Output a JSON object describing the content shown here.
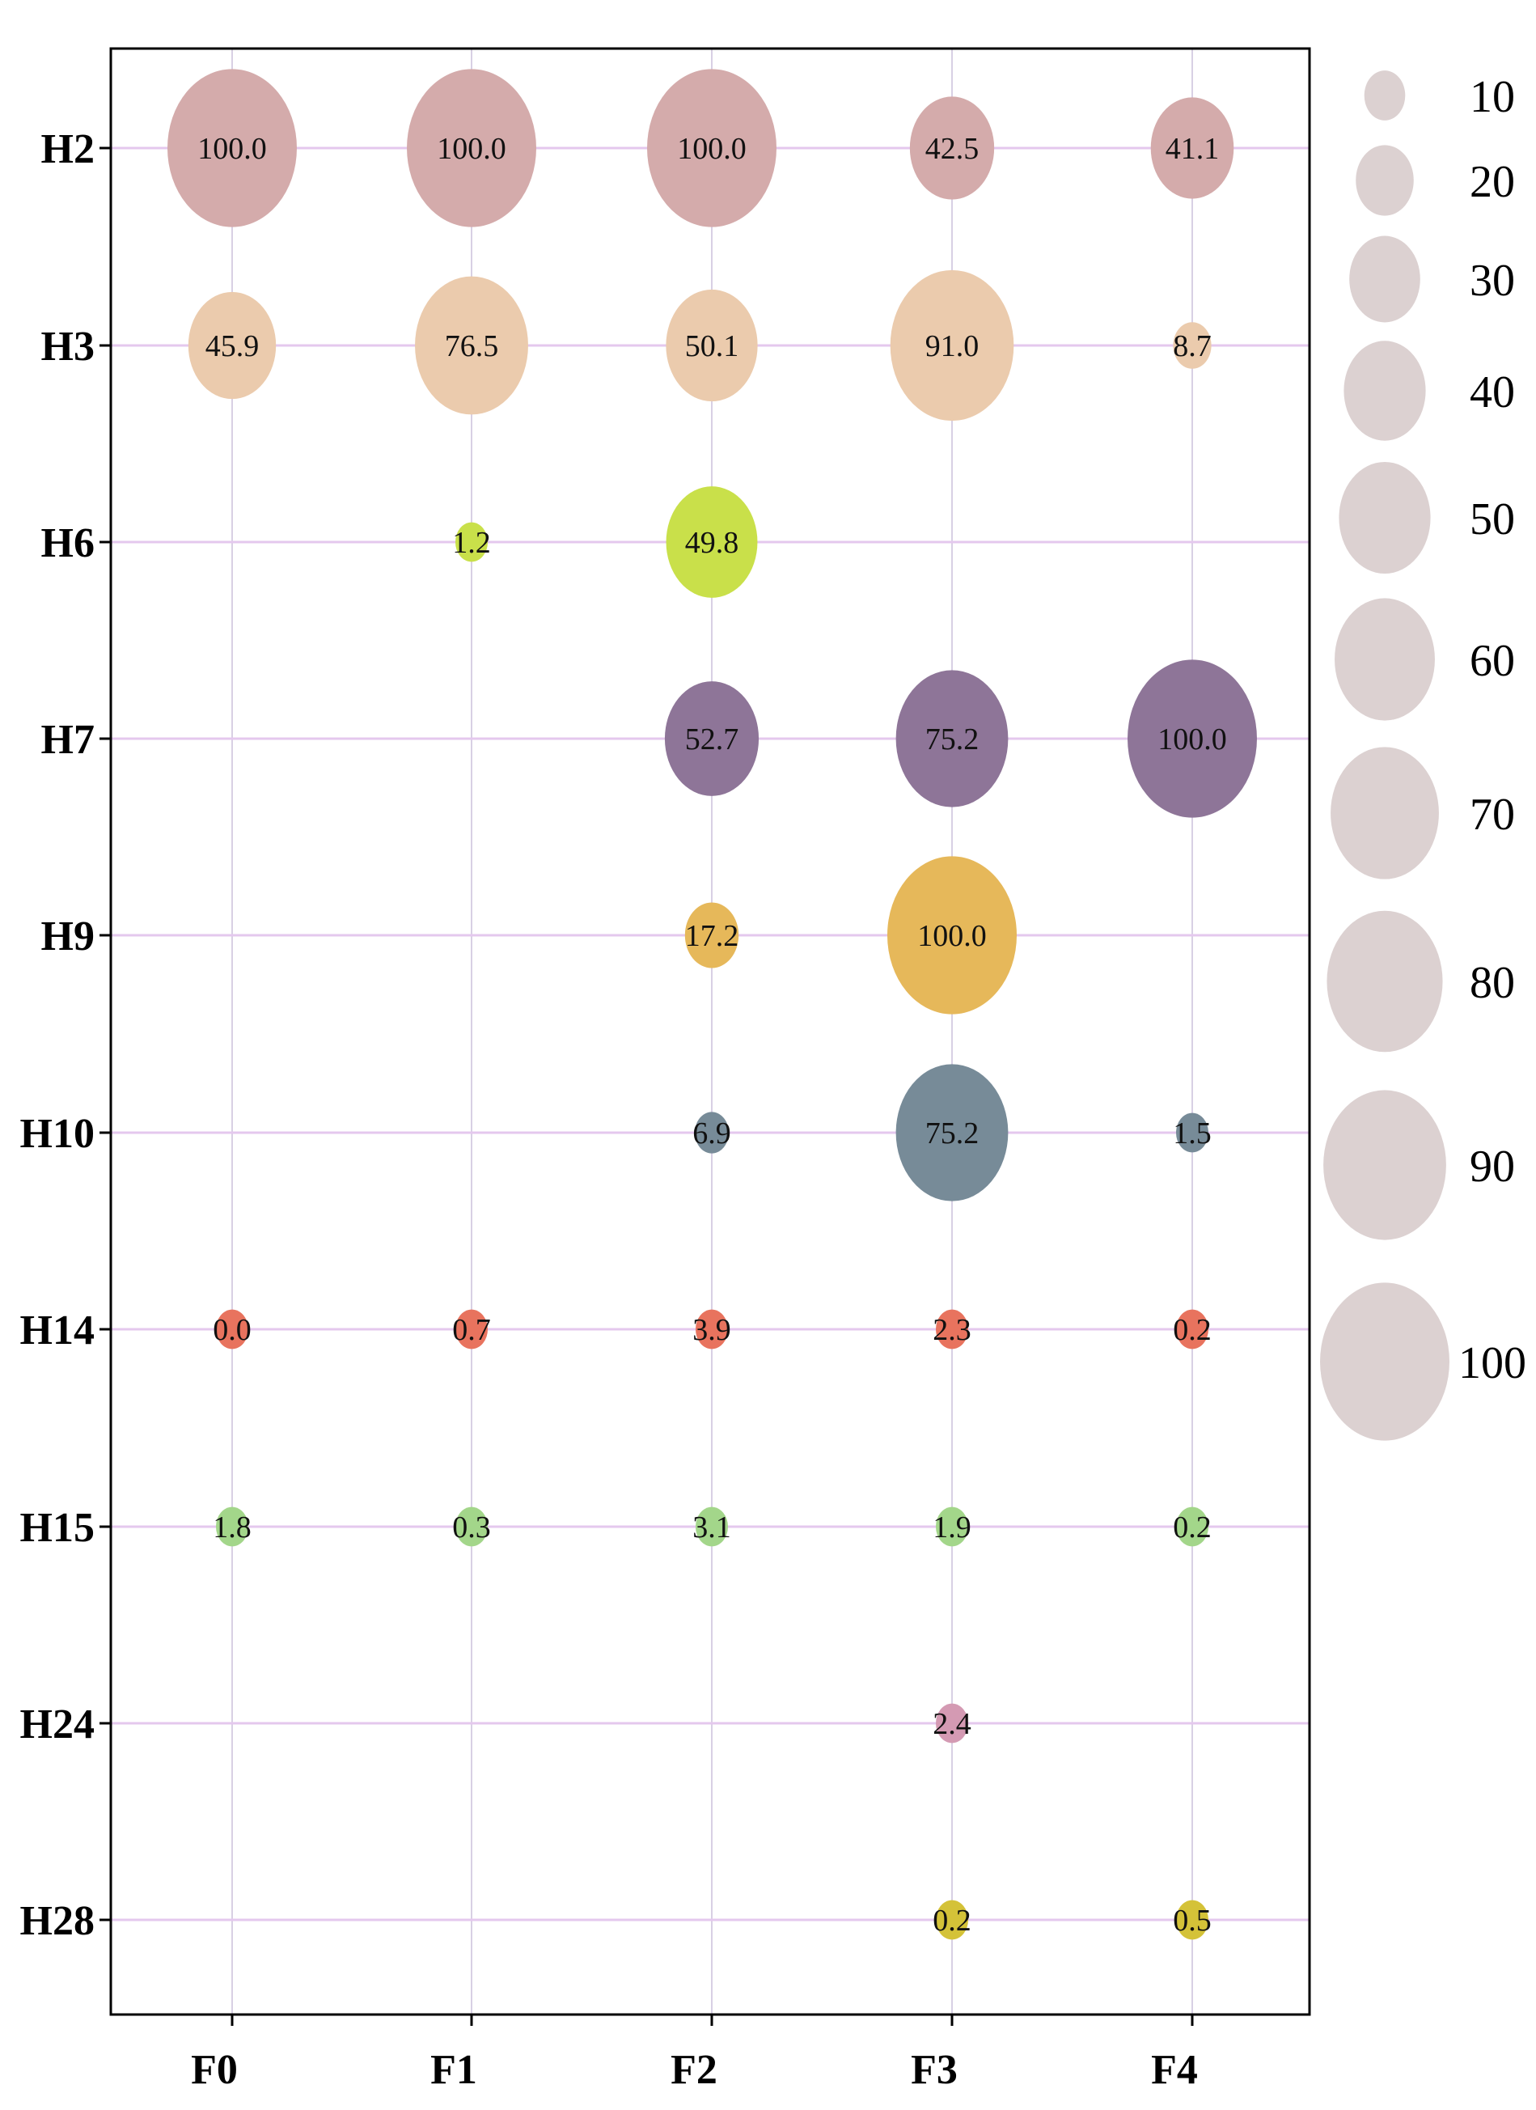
{
  "chart_data": {
    "type": "bubble",
    "x_categories": [
      "F0",
      "F1",
      "F2",
      "F3",
      "F4"
    ],
    "y_categories": [
      "H2",
      "H3",
      "H6",
      "H7",
      "H9",
      "H10",
      "H14",
      "H15",
      "H24",
      "H28"
    ],
    "size_max": 100,
    "series": [
      {
        "name": "H2",
        "color": "#d4abab",
        "points": [
          {
            "x": "F0",
            "value": 100.0,
            "label": "100.0"
          },
          {
            "x": "F1",
            "value": 100.0,
            "label": "100.0"
          },
          {
            "x": "F2",
            "value": 100.0,
            "label": "100.0"
          },
          {
            "x": "F3",
            "value": 42.5,
            "label": "42.5"
          },
          {
            "x": "F4",
            "value": 41.1,
            "label": "41.1"
          }
        ]
      },
      {
        "name": "H3",
        "color": "#ebcbad",
        "points": [
          {
            "x": "F0",
            "value": 45.9,
            "label": "45.9"
          },
          {
            "x": "F1",
            "value": 76.5,
            "label": "76.5"
          },
          {
            "x": "F2",
            "value": 50.1,
            "label": "50.1"
          },
          {
            "x": "F3",
            "value": 91.0,
            "label": "91.0"
          },
          {
            "x": "F4",
            "value": 8.7,
            "label": "8.7"
          }
        ]
      },
      {
        "name": "H6",
        "color": "#c9e04a",
        "points": [
          {
            "x": "F1",
            "value": 1.2,
            "label": "1.2"
          },
          {
            "x": "F2",
            "value": 49.8,
            "label": "49.8"
          }
        ]
      },
      {
        "name": "H7",
        "color": "#8e7598",
        "points": [
          {
            "x": "F2",
            "value": 52.7,
            "label": "52.7"
          },
          {
            "x": "F3",
            "value": 75.2,
            "label": "75.2"
          },
          {
            "x": "F4",
            "value": 100.0,
            "label": "100.0"
          }
        ]
      },
      {
        "name": "H9",
        "color": "#e6b85a",
        "points": [
          {
            "x": "F2",
            "value": 17.2,
            "label": "17.2"
          },
          {
            "x": "F3",
            "value": 100.0,
            "label": "100.0"
          }
        ]
      },
      {
        "name": "H10",
        "color": "#778b98",
        "points": [
          {
            "x": "F2",
            "value": 6.9,
            "label": "6.9"
          },
          {
            "x": "F3",
            "value": 75.2,
            "label": "75.2"
          },
          {
            "x": "F4",
            "value": 1.5,
            "label": "1.5"
          }
        ]
      },
      {
        "name": "H14",
        "color": "#e8735e",
        "points": [
          {
            "x": "F0",
            "value": 0.0,
            "label": "0.0"
          },
          {
            "x": "F1",
            "value": 0.7,
            "label": "0.7"
          },
          {
            "x": "F2",
            "value": 3.9,
            "label": "3.9"
          },
          {
            "x": "F3",
            "value": 2.3,
            "label": "2.3"
          },
          {
            "x": "F4",
            "value": 0.2,
            "label": "0.2"
          }
        ]
      },
      {
        "name": "H15",
        "color": "#a3d68a",
        "points": [
          {
            "x": "F0",
            "value": 1.8,
            "label": "1.8"
          },
          {
            "x": "F1",
            "value": 0.3,
            "label": "0.3"
          },
          {
            "x": "F2",
            "value": 3.1,
            "label": "3.1"
          },
          {
            "x": "F3",
            "value": 1.9,
            "label": "1.9"
          },
          {
            "x": "F4",
            "value": 0.2,
            "label": "0.2"
          }
        ]
      },
      {
        "name": "H24",
        "color": "#d49ab3",
        "points": [
          {
            "x": "F3",
            "value": 2.4,
            "label": "2.4"
          }
        ]
      },
      {
        "name": "H28",
        "color": "#d4c238",
        "points": [
          {
            "x": "F3",
            "value": 0.2,
            "label": "0.2"
          },
          {
            "x": "F4",
            "value": 0.5,
            "label": "0.5"
          }
        ]
      }
    ],
    "legend": {
      "title": "",
      "color": "#dcd1d1",
      "entries": [
        10,
        20,
        30,
        40,
        50,
        60,
        70,
        80,
        90,
        100
      ],
      "labels": [
        "10",
        "20",
        "30",
        "40",
        "50",
        "60",
        "70",
        "80",
        "90",
        "100"
      ],
      "placement": "right"
    },
    "colors": {
      "grid_h": "#e4c8ee",
      "grid_v": "#d8d0e4",
      "axis": "#000000"
    }
  }
}
